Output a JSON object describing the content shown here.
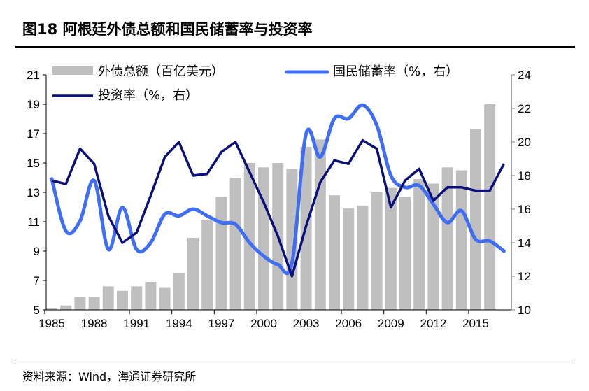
{
  "title": "图18 阿根廷外债总额和国民储蓄率与投资率",
  "source": "资料来源：Wind，海通证券研究所",
  "chart_data": {
    "type": "bar+line",
    "title": "图18 阿根廷外债总额和国民储蓄率与投资率",
    "x": [
      1985,
      1986,
      1987,
      1988,
      1989,
      1990,
      1991,
      1992,
      1993,
      1994,
      1995,
      1996,
      1997,
      1998,
      1999,
      2000,
      2001,
      2002,
      2003,
      2004,
      2005,
      2006,
      2007,
      2008,
      2009,
      2010,
      2011,
      2012,
      2013,
      2014,
      2015,
      2016,
      2017
    ],
    "x_tick_labels": [
      "1985",
      "1988",
      "1991",
      "1994",
      "1997",
      "2000",
      "2003",
      "2006",
      "2009",
      "2012",
      "2015"
    ],
    "y_left": {
      "range": [
        5,
        21
      ],
      "ticks": [
        "5",
        "7",
        "9",
        "11",
        "13",
        "15",
        "17",
        "19",
        "21"
      ]
    },
    "y_right": {
      "range": [
        10,
        24
      ],
      "ticks": [
        "10",
        "12",
        "14",
        "16",
        "18",
        "20",
        "22",
        "24"
      ]
    },
    "series": [
      {
        "name": "外债总额（百亿美元）",
        "type": "bar",
        "axis": "left",
        "color": "#bfbfbf",
        "values": [
          5.1,
          5.3,
          5.9,
          5.9,
          6.6,
          6.3,
          6.6,
          6.9,
          6.5,
          7.5,
          9.9,
          11.1,
          12.7,
          14.0,
          15.0,
          14.7,
          15.0,
          14.6,
          16.1,
          16.6,
          12.8,
          11.9,
          12.1,
          13.0,
          13.3,
          12.7,
          13.9,
          13.6,
          14.7,
          14.5,
          17.3,
          19.0,
          null
        ]
      },
      {
        "name": "国民储蓄率（%，右）",
        "type": "line",
        "axis": "right",
        "color": "#3f6ef5",
        "values": [
          17.8,
          14.7,
          15.3,
          17.7,
          13.6,
          16.1,
          13.6,
          14.0,
          15.7,
          15.6,
          16.0,
          15.6,
          15.2,
          15.1,
          14.0,
          13.2,
          12.7,
          12.8,
          20.5,
          19.1,
          21.4,
          21.4,
          22.2,
          21.0,
          18.0,
          17.3,
          17.4,
          16.3,
          15.2,
          15.9,
          14.2,
          14.1,
          13.5
        ]
      },
      {
        "name": "投资率（%，右）",
        "type": "line",
        "axis": "right",
        "color": "#0b0f7a",
        "values": [
          17.7,
          17.5,
          19.6,
          18.7,
          15.6,
          14.0,
          14.6,
          16.8,
          19.1,
          20.0,
          18.0,
          18.1,
          19.4,
          20.0,
          18.2,
          16.4,
          14.4,
          12.0,
          15.0,
          17.6,
          18.9,
          18.7,
          20.1,
          19.6,
          16.1,
          17.7,
          18.4,
          16.5,
          17.3,
          17.3,
          17.1,
          17.1,
          18.7
        ]
      }
    ],
    "legend": "top",
    "grid": false
  }
}
